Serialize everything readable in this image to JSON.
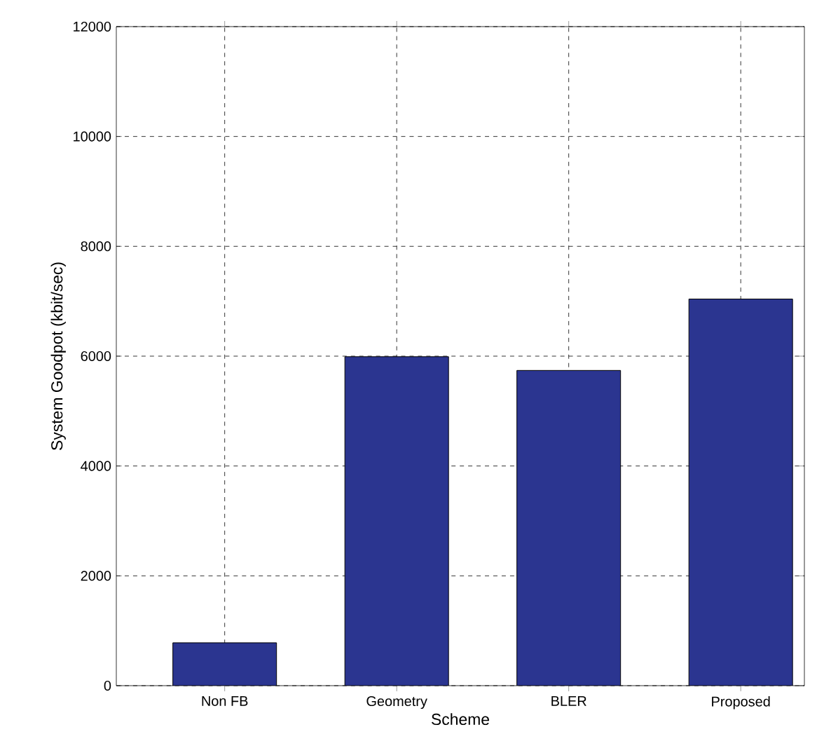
{
  "chart_data": {
    "type": "bar",
    "xlabel": "Scheme",
    "ylabel": "System Goodpot (kbit/sec)",
    "categories": [
      "Non FB",
      "Geometry",
      "BLER",
      "Proposed"
    ],
    "values": [
      780,
      5990,
      5740,
      7040
    ],
    "color": "#2b3590",
    "ylim": [
      0,
      12000
    ],
    "yticks": [
      0,
      2000,
      4000,
      6000,
      8000,
      10000,
      12000
    ],
    "grid": true
  }
}
